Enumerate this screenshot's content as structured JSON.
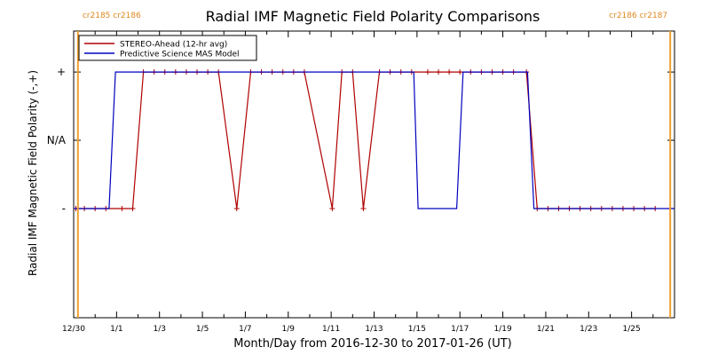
{
  "chart_data": {
    "type": "line",
    "title": "Radial IMF Magnetic Field Polarity Comparisons",
    "xlabel": "Month/Day from 2016-12-30 to 2017-01-26 (UT)",
    "ylabel": "Radial IMF Magnetic Field Polarity (-,+)",
    "x_unit": "days",
    "xlim": [
      0,
      28
    ],
    "y_categories": [
      "-",
      "N/A",
      "+"
    ],
    "ylim": [
      -0.8,
      1.3
    ],
    "y_ticks": [
      {
        "value": 0,
        "label": "-"
      },
      {
        "value": 0.5,
        "label": "N/A"
      },
      {
        "value": 1,
        "label": "+"
      }
    ],
    "x_ticks": [
      {
        "x": 0,
        "label": "12/30"
      },
      {
        "x": 2,
        "label": "1/1"
      },
      {
        "x": 4,
        "label": "1/3"
      },
      {
        "x": 6,
        "label": "1/5"
      },
      {
        "x": 8,
        "label": "1/7"
      },
      {
        "x": 10,
        "label": "1/9"
      },
      {
        "x": 12,
        "label": "1/11"
      },
      {
        "x": 14,
        "label": "1/13"
      },
      {
        "x": 16,
        "label": "1/15"
      },
      {
        "x": 18,
        "label": "1/17"
      },
      {
        "x": 20,
        "label": "1/19"
      },
      {
        "x": 22,
        "label": "1/21"
      },
      {
        "x": 24,
        "label": "1/23"
      },
      {
        "x": 26,
        "label": "1/25"
      }
    ],
    "carrington_markers": [
      {
        "x": 0.2,
        "labels": [
          "cr2185",
          "cr2186"
        ],
        "side": "left"
      },
      {
        "x": 27.8,
        "labels": [
          "cr2186",
          "cr2187"
        ],
        "side": "right"
      }
    ],
    "legend": {
      "placement": "top-left"
    },
    "series": [
      {
        "name": "STEREO-Ahead (12-hr avg)",
        "color": "#b00000",
        "marker": "plus",
        "points": [
          [
            0.1,
            0
          ],
          [
            0.5,
            0
          ],
          [
            1.0,
            0
          ],
          [
            1.5,
            0
          ],
          [
            2.25,
            0
          ],
          [
            2.75,
            0
          ],
          [
            3.25,
            1
          ],
          [
            3.75,
            1
          ],
          [
            4.25,
            1
          ],
          [
            4.75,
            1
          ],
          [
            5.25,
            1
          ],
          [
            5.75,
            1
          ],
          [
            6.25,
            1
          ],
          [
            6.75,
            1
          ],
          [
            7.6,
            0
          ],
          [
            8.25,
            1
          ],
          [
            8.75,
            1
          ],
          [
            9.25,
            1
          ],
          [
            9.75,
            1
          ],
          [
            10.25,
            1
          ],
          [
            10.75,
            1
          ],
          [
            12.05,
            0
          ],
          [
            12.5,
            1
          ],
          [
            13.0,
            1
          ],
          [
            13.5,
            0
          ],
          [
            14.25,
            1
          ],
          [
            14.75,
            1
          ],
          [
            15.25,
            1
          ],
          [
            15.75,
            1
          ],
          [
            16.5,
            1
          ],
          [
            17.0,
            1
          ],
          [
            17.5,
            1
          ],
          [
            18.0,
            1
          ],
          [
            18.5,
            1
          ],
          [
            19.0,
            1
          ],
          [
            19.5,
            1
          ],
          [
            20.0,
            1
          ],
          [
            20.5,
            1
          ],
          [
            21.1,
            1
          ],
          [
            21.6,
            0
          ],
          [
            22.1,
            0
          ],
          [
            22.6,
            0
          ],
          [
            23.1,
            0
          ],
          [
            23.6,
            0
          ],
          [
            24.1,
            0
          ],
          [
            24.6,
            0
          ],
          [
            25.1,
            0
          ],
          [
            25.6,
            0
          ],
          [
            26.1,
            0
          ],
          [
            26.6,
            0
          ],
          [
            27.1,
            0
          ]
        ]
      },
      {
        "name": "Predictive Science MAS Model",
        "color": "#0000c0",
        "marker": "none",
        "points": [
          [
            0.0,
            0
          ],
          [
            1.65,
            0
          ],
          [
            1.95,
            1
          ],
          [
            15.85,
            1
          ],
          [
            16.05,
            0
          ],
          [
            17.85,
            0
          ],
          [
            18.15,
            1
          ],
          [
            21.15,
            1
          ],
          [
            21.45,
            0
          ],
          [
            28.0,
            0
          ]
        ]
      }
    ]
  }
}
